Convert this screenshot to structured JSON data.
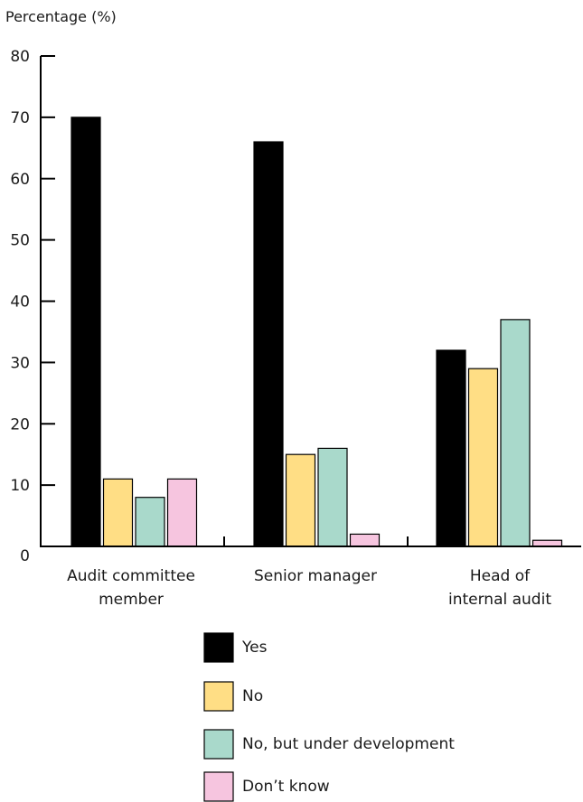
{
  "chart_data": {
    "type": "bar",
    "title": "",
    "ylabel": "Percentage (%)",
    "xlabel": "",
    "ylim": [
      0,
      80
    ],
    "yticks": [
      0,
      10,
      20,
      30,
      40,
      50,
      60,
      70,
      80
    ],
    "grid": false,
    "legend_position": "bottom",
    "categories": [
      [
        "Audit committee",
        "member"
      ],
      [
        "Senior manager"
      ],
      [
        "Head of",
        "internal audit"
      ]
    ],
    "series": [
      {
        "name": "Yes",
        "color": "#000000",
        "values": [
          70,
          66,
          32
        ]
      },
      {
        "name": "No",
        "color": "#ffde85",
        "values": [
          11,
          15,
          29
        ]
      },
      {
        "name": "No, but under development",
        "color": "#a9d9cb",
        "values": [
          8,
          16,
          37
        ]
      },
      {
        "name": "Don’t know",
        "color": "#f6c5df",
        "values": [
          11,
          2,
          1
        ]
      }
    ]
  }
}
